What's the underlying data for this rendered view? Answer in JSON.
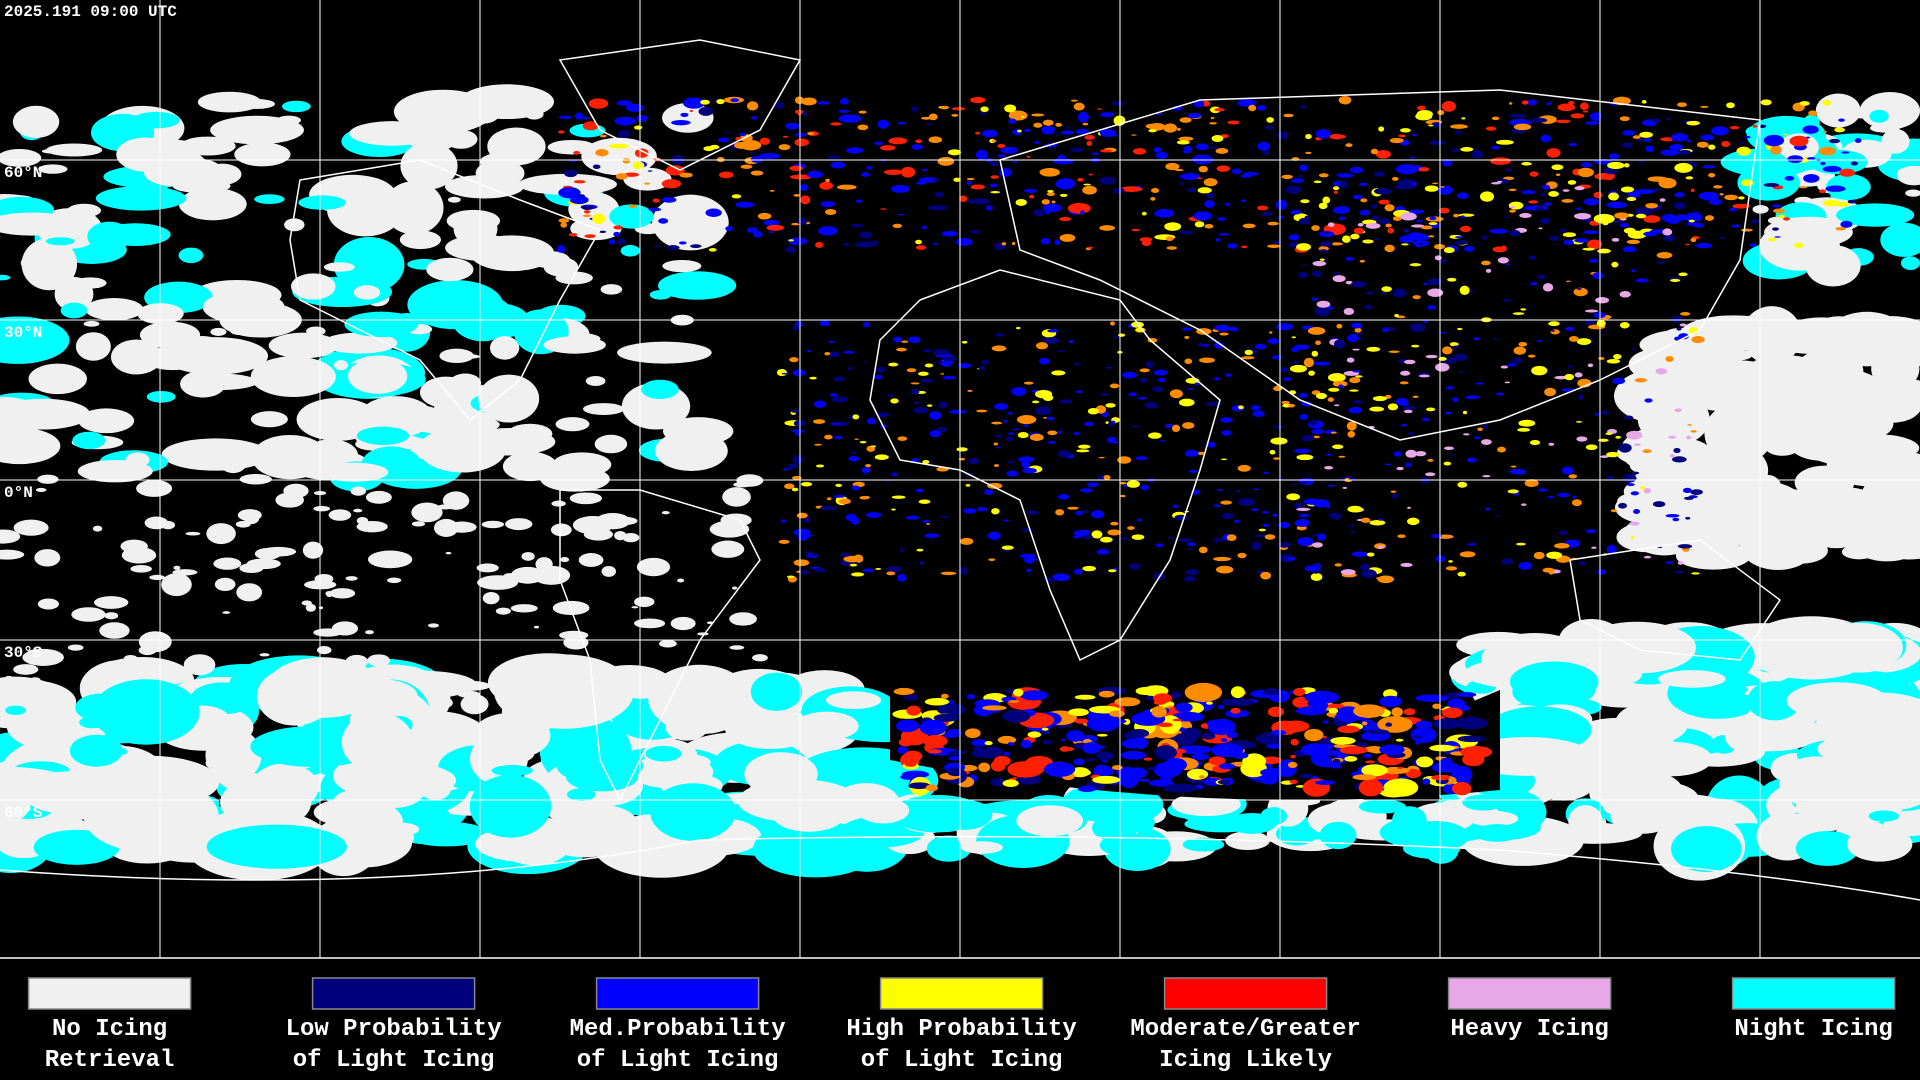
{
  "header": {
    "timestamp": "2025.191 09:00 UTC"
  },
  "map": {
    "latitude_labels": [
      "60°N",
      "30°N",
      "0°N",
      "30°S",
      "60°S"
    ]
  },
  "legend": {
    "items": [
      {
        "lines": [
          "No Icing",
          "Retrieval"
        ],
        "color": "#f0f0f0"
      },
      {
        "lines": [
          "Low Probability",
          "of Light Icing"
        ],
        "color": "#00007c"
      },
      {
        "lines": [
          "Med.Probability",
          "of Light Icing"
        ],
        "color": "#0000ff"
      },
      {
        "lines": [
          "High Probability",
          "of Light Icing"
        ],
        "color": "#ffff00"
      },
      {
        "lines": [
          "Moderate/Greater",
          "Icing Likely"
        ],
        "color": "#ff0000"
      },
      {
        "lines": [
          "Heavy Icing"
        ],
        "color": "#e8a8e8"
      },
      {
        "lines": [
          "Night Icing"
        ],
        "color": "#00ffff"
      }
    ]
  }
}
